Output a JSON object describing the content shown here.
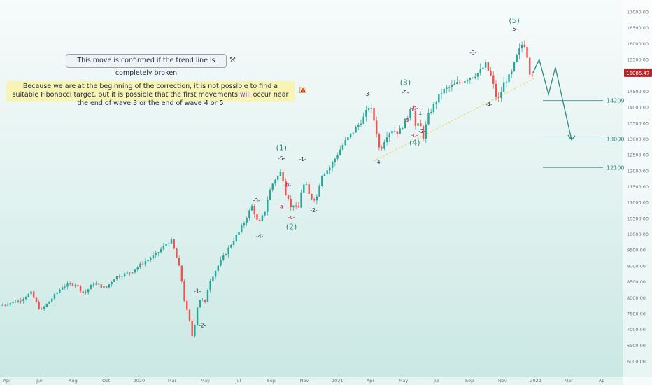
{
  "notes": {
    "trend_note": "This move is confirmed if the trend line is completely broken",
    "fib_note_part1": "Because we are at the beginning of the correction, it is not possible to find a suitable Fibonacci target, but it is possible that the first movements ",
    "fib_note_highlight": "will",
    "fib_note_part2": " occur near the end of wave 3 or the end of wave 4 or 5"
  },
  "icons": {
    "pin": "pin-icon",
    "chart": "chart-icon"
  },
  "colors": {
    "up": "#26a69a",
    "down": "#ef5350",
    "wave": "#2e8b80",
    "sub_wave": "#1f2a44",
    "abc": "#c2185b",
    "trendline": "#e8d36a",
    "last_price_bg": "#b2262c",
    "target_line": "#2e8b80"
  },
  "chart_data": {
    "type": "candlestick",
    "instrument_last_price": "15085.47",
    "ylim": [
      6000,
      17000
    ],
    "y_ticks": [
      "17000.00",
      "16500.00",
      "16000.00",
      "15500.00",
      "15000.00",
      "14500.00",
      "14000.00",
      "13500.00",
      "13000.00",
      "12500.00",
      "12000.00",
      "11500.00",
      "11000.00",
      "10500.00",
      "10000.00",
      "9500.00",
      "9000.00",
      "8500.00",
      "8000.00",
      "7500.00",
      "7000.00",
      "6500.00",
      "6000.00"
    ],
    "x_ticks": [
      "Apr",
      "Jun",
      "Aug",
      "Oct",
      "2020",
      "Mar",
      "May",
      "Jul",
      "Sep",
      "Nov",
      "2021",
      "Apr",
      "May",
      "Jul",
      "Sep",
      "Nov",
      "2022",
      "Mar",
      "Ap"
    ],
    "price_path": [
      [
        0,
        7750
      ],
      [
        0.03,
        7900
      ],
      [
        0.05,
        8150
      ],
      [
        0.065,
        7580
      ],
      [
        0.08,
        7900
      ],
      [
        0.1,
        8350
      ],
      [
        0.12,
        8450
      ],
      [
        0.135,
        8120
      ],
      [
        0.15,
        8450
      ],
      [
        0.17,
        8300
      ],
      [
        0.185,
        8650
      ],
      [
        0.21,
        8800
      ],
      [
        0.23,
        9100
      ],
      [
        0.25,
        9350
      ],
      [
        0.27,
        9750
      ],
      [
        0.275,
        9800
      ],
      [
        0.283,
        9300
      ],
      [
        0.29,
        8800
      ],
      [
        0.297,
        7800
      ],
      [
        0.303,
        7400
      ],
      [
        0.31,
        6650
      ],
      [
        0.315,
        7600
      ],
      [
        0.322,
        8000
      ],
      [
        0.33,
        7800
      ],
      [
        0.335,
        8450
      ],
      [
        0.35,
        9000
      ],
      [
        0.37,
        9650
      ],
      [
        0.385,
        10100
      ],
      [
        0.395,
        10500
      ],
      [
        0.405,
        10900
      ],
      [
        0.415,
        10300
      ],
      [
        0.425,
        10700
      ],
      [
        0.432,
        11300
      ],
      [
        0.44,
        11700
      ],
      [
        0.45,
        11900
      ],
      [
        0.452,
        12100
      ],
      [
        0.458,
        11300
      ],
      [
        0.462,
        11250
      ],
      [
        0.468,
        10750
      ],
      [
        0.473,
        11050
      ],
      [
        0.478,
        10600
      ],
      [
        0.483,
        11300
      ],
      [
        0.49,
        11650
      ],
      [
        0.497,
        11200
      ],
      [
        0.503,
        11100
      ],
      [
        0.51,
        11200
      ],
      [
        0.515,
        11850
      ],
      [
        0.53,
        12100
      ],
      [
        0.55,
        12800
      ],
      [
        0.57,
        13300
      ],
      [
        0.585,
        13700
      ],
      [
        0.594,
        14100
      ],
      [
        0.603,
        13400
      ],
      [
        0.61,
        12600
      ],
      [
        0.62,
        13100
      ],
      [
        0.63,
        13300
      ],
      [
        0.64,
        13200
      ],
      [
        0.655,
        13700
      ],
      [
        0.66,
        14100
      ],
      [
        0.664,
        13900
      ],
      [
        0.668,
        13300
      ],
      [
        0.674,
        13500
      ],
      [
        0.68,
        13050
      ],
      [
        0.687,
        13700
      ],
      [
        0.695,
        14000
      ],
      [
        0.71,
        14500
      ],
      [
        0.73,
        14700
      ],
      [
        0.75,
        14900
      ],
      [
        0.77,
        15100
      ],
      [
        0.78,
        15350
      ],
      [
        0.787,
        15000
      ],
      [
        0.79,
        14950
      ],
      [
        0.795,
        14400
      ],
      [
        0.8,
        14200
      ],
      [
        0.81,
        14800
      ],
      [
        0.82,
        15000
      ],
      [
        0.83,
        15600
      ],
      [
        0.84,
        16050
      ],
      [
        0.845,
        15900
      ],
      [
        0.848,
        15400
      ],
      [
        0.852,
        15000
      ],
      [
        0.855,
        15085
      ]
    ],
    "wave_labels": [
      {
        "t": "(1)",
        "x": 0.452,
        "y": 12650,
        "kind": "wave"
      },
      {
        "t": "-5-",
        "x": 0.452,
        "y": 12330,
        "kind": "sub"
      },
      {
        "t": "(2)",
        "x": 0.468,
        "y": 10150,
        "kind": "wave"
      },
      {
        "t": "-c-",
        "x": 0.468,
        "y": 10480,
        "kind": "abc"
      },
      {
        "t": "-b-",
        "x": 0.462,
        "y": 11500,
        "kind": "abc"
      },
      {
        "t": "-a-",
        "x": 0.452,
        "y": 10820,
        "kind": "abc"
      },
      {
        "t": "(3)",
        "x": 0.651,
        "y": 14700,
        "kind": "wave"
      },
      {
        "t": "-5-",
        "x": 0.651,
        "y": 14400,
        "kind": "sub"
      },
      {
        "t": "(4)",
        "x": 0.666,
        "y": 12800,
        "kind": "wave"
      },
      {
        "t": "-c-",
        "x": 0.666,
        "y": 13060,
        "kind": "abc"
      },
      {
        "t": "-b-",
        "x": 0.666,
        "y": 13920,
        "kind": "abc"
      },
      {
        "t": "-a-",
        "x": 0.654,
        "y": 13550,
        "kind": "abc"
      },
      {
        "t": "-1-",
        "x": 0.675,
        "y": 13760,
        "kind": "sub"
      },
      {
        "t": "-2-",
        "x": 0.678,
        "y": 13190,
        "kind": "sub"
      },
      {
        "t": "(5)",
        "x": 0.826,
        "y": 16650,
        "kind": "wave"
      },
      {
        "t": "-5-",
        "x": 0.826,
        "y": 16400,
        "kind": "sub"
      },
      {
        "t": "-1-",
        "x": 0.317,
        "y": 8150,
        "kind": "sub"
      },
      {
        "t": "-2-",
        "x": 0.325,
        "y": 7070,
        "kind": "sub"
      },
      {
        "t": "-3-",
        "x": 0.412,
        "y": 11000,
        "kind": "sub"
      },
      {
        "t": "-4-",
        "x": 0.417,
        "y": 9880,
        "kind": "sub"
      },
      {
        "t": "-1-",
        "x": 0.486,
        "y": 12300,
        "kind": "sub"
      },
      {
        "t": "-2-",
        "x": 0.504,
        "y": 10700,
        "kind": "sub"
      },
      {
        "t": "-3-",
        "x": 0.59,
        "y": 14360,
        "kind": "sub"
      },
      {
        "t": "-4-",
        "x": 0.608,
        "y": 12220,
        "kind": "sub"
      },
      {
        "t": "-3-",
        "x": 0.76,
        "y": 15660,
        "kind": "sub"
      },
      {
        "t": "-4-",
        "x": 0.785,
        "y": 14020,
        "kind": "sub"
      }
    ],
    "trendline": [
      [
        0.6,
        12300
      ],
      [
        0.858,
        14900
      ]
    ],
    "projection": [
      [
        0.856,
        15080
      ],
      [
        0.866,
        15500
      ],
      [
        0.881,
        14400
      ],
      [
        0.892,
        15250
      ],
      [
        0.918,
        12970
      ]
    ],
    "targets": [
      {
        "label": "14209",
        "value": 14209
      },
      {
        "label": "13000",
        "value": 13000
      },
      {
        "label": "12100",
        "value": 12100
      }
    ]
  }
}
